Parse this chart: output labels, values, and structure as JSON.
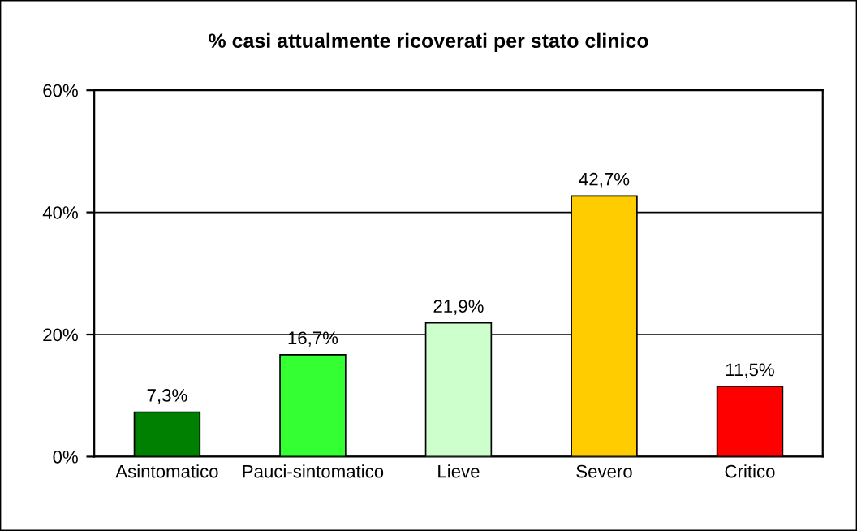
{
  "chart_data": {
    "type": "bar",
    "title": "% casi attualmente ricoverati per stato clinico",
    "categories": [
      "Asintomatico",
      "Pauci-sintomatico",
      "Lieve",
      "Severo",
      "Critico"
    ],
    "values": [
      7.3,
      16.7,
      21.9,
      42.7,
      11.5
    ],
    "value_labels": [
      "7,3%",
      "16,7%",
      "21,9%",
      "42,7%",
      "11,5%"
    ],
    "colors": [
      "#008000",
      "#33ff33",
      "#ccffcc",
      "#ffcc00",
      "#ff0000"
    ],
    "ylim": [
      0,
      60
    ],
    "yticks": [
      {
        "value": 0,
        "label": "0%"
      },
      {
        "value": 20,
        "label": "20%"
      },
      {
        "value": 40,
        "label": "40%"
      },
      {
        "value": 60,
        "label": "60%"
      }
    ],
    "grid": "y"
  }
}
